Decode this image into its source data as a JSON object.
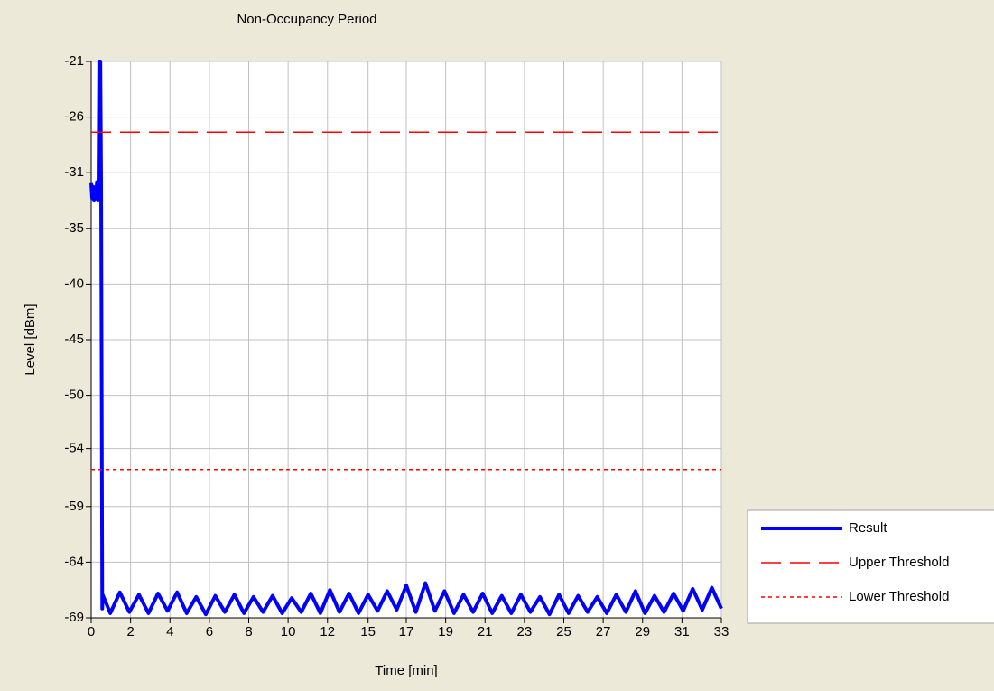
{
  "chart_data": {
    "type": "line",
    "title": "Non-Occupancy Period",
    "xlabel": "Time [min]",
    "ylabel": "Level [dBm]",
    "xlim": [
      0,
      33
    ],
    "ylim": [
      -69,
      -21
    ],
    "xticks": [
      0,
      {
        "value": 2.0625,
        "label": "2"
      },
      {
        "value": 4.125,
        "label": "4"
      },
      {
        "value": 6.1875,
        "label": "6"
      },
      {
        "value": 8.25,
        "label": "8"
      },
      {
        "value": 10.3125,
        "label": "10"
      },
      {
        "value": 12.375,
        "label": "12"
      },
      {
        "value": 14.5,
        "label": "15"
      },
      {
        "value": 16.5,
        "label": "17"
      },
      {
        "value": 18.5625,
        "label": "19"
      },
      {
        "value": 20.625,
        "label": "21"
      },
      {
        "value": 22.6875,
        "label": "23"
      },
      {
        "value": 24.75,
        "label": "25"
      },
      {
        "value": 26.8125,
        "label": "27"
      },
      {
        "value": 28.875,
        "label": "29"
      },
      {
        "value": 30.9375,
        "label": "31"
      },
      33
    ],
    "yticks": [
      -21,
      {
        "value": -25.8,
        "label": "-26"
      },
      {
        "value": -30.6,
        "label": "-31"
      },
      {
        "value": -35.4,
        "label": "-35"
      },
      {
        "value": -40.2,
        "label": "-40"
      },
      -45,
      {
        "value": -49.8,
        "label": "-50"
      },
      {
        "value": -54.4,
        "label": "-54"
      },
      {
        "value": -59.4,
        "label": "-59"
      },
      {
        "value": -64.2,
        "label": "-64"
      },
      -69
    ],
    "grid": true,
    "legend": "lower right",
    "series": [
      {
        "name": "Result",
        "color": "#0000ff",
        "dash": "solid",
        "x": [
          0,
          0.05,
          0.1,
          0.15,
          0.2,
          0.25,
          0.3,
          0.35,
          0.38,
          0.42,
          0.48,
          0.52,
          0.58,
          0.6,
          1,
          1.5,
          2,
          2.5,
          3,
          3.5,
          4,
          4.5,
          5,
          5.5,
          6,
          6.5,
          7,
          7.5,
          8,
          8.5,
          9,
          9.5,
          10,
          10.5,
          11,
          11.5,
          12,
          12.5,
          13,
          13.5,
          14,
          14.5,
          15,
          15.5,
          16,
          16.5,
          17,
          17.5,
          18,
          18.5,
          19,
          19.5,
          20,
          20.5,
          21,
          21.5,
          22,
          22.5,
          23,
          23.5,
          24,
          24.5,
          25,
          25.5,
          26,
          26.5,
          27,
          27.5,
          28,
          28.5,
          29,
          29.5,
          30,
          30.5,
          31,
          31.5,
          32,
          32.5,
          33
        ],
        "values": [
          -31.5,
          -32.8,
          -31.8,
          -33,
          -32,
          -32.6,
          -31.4,
          -33,
          -31.5,
          -21,
          -21,
          -31.5,
          -68.2,
          -67.0,
          -68.6,
          -66.8,
          -68.5,
          -67.0,
          -68.6,
          -66.9,
          -68.4,
          -66.8,
          -68.6,
          -67.2,
          -68.7,
          -67.1,
          -68.5,
          -67.0,
          -68.6,
          -67.2,
          -68.5,
          -67.1,
          -68.6,
          -67.3,
          -68.5,
          -66.9,
          -68.6,
          -66.6,
          -68.5,
          -66.9,
          -68.6,
          -67.0,
          -68.4,
          -66.7,
          -68.3,
          -66.2,
          -68.5,
          -66.0,
          -68.4,
          -66.7,
          -68.6,
          -67.0,
          -68.5,
          -66.9,
          -68.6,
          -67.1,
          -68.6,
          -67.0,
          -68.5,
          -67.2,
          -68.7,
          -67.0,
          -68.6,
          -67.1,
          -68.5,
          -67.2,
          -68.6,
          -67.0,
          -68.5,
          -66.7,
          -68.6,
          -67.1,
          -68.5,
          -66.9,
          -68.4,
          -66.5,
          -68.3,
          -66.4,
          -68.2
        ]
      },
      {
        "name": "Upper Threshold",
        "color": "#ff0000",
        "dash": "dashed",
        "x": [
          0,
          33
        ],
        "values": [
          -27.1,
          -27.1
        ]
      },
      {
        "name": "Lower Threshold",
        "color": "#ff0000",
        "dash": "dotted",
        "x": [
          0,
          33
        ],
        "values": [
          -56.2,
          -56.2
        ]
      }
    ]
  }
}
